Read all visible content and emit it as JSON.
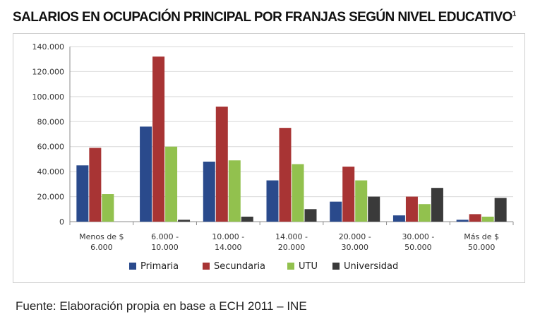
{
  "title": "SALARIOS EN OCUPACIÓN PRINCIPAL POR FRANJAS SEGÚN NIVEL EDUCATIVO",
  "title_footnote": "1",
  "source": "Fuente: Elaboración propia en base a ECH 2011 – INE",
  "chart_data": {
    "type": "bar",
    "title": "",
    "xlabel": "",
    "ylabel": "",
    "ylim": [
      0,
      140000
    ],
    "yticks": [
      0,
      20000,
      40000,
      60000,
      80000,
      100000,
      120000,
      140000
    ],
    "ytick_labels": [
      "0",
      "20.000",
      "40.000",
      "60.000",
      "80.000",
      "100.000",
      "120.000",
      "140.000"
    ],
    "categories": [
      [
        "Menos de $",
        "6.000"
      ],
      [
        "6.000 -",
        "10.000"
      ],
      [
        "10.000 -",
        "14.000"
      ],
      [
        "14.000 -",
        "20.000"
      ],
      [
        "20.000 -",
        "30.000"
      ],
      [
        "30.000 -",
        "50.000"
      ],
      [
        "Más de $",
        "50.000"
      ]
    ],
    "series": [
      {
        "name": "Primaria",
        "color": "#2a4a8c",
        "values": [
          45000,
          76000,
          48000,
          33000,
          16000,
          5000,
          1500
        ]
      },
      {
        "name": "Secundaria",
        "color": "#a83434",
        "values": [
          59000,
          132000,
          92000,
          75000,
          44000,
          20000,
          6000
        ]
      },
      {
        "name": "UTU",
        "color": "#92c14e",
        "values": [
          22000,
          60000,
          49000,
          46000,
          33000,
          14000,
          4000
        ]
      },
      {
        "name": "Universidad",
        "color": "#3a3a3a",
        "values": [
          0,
          1500,
          4000,
          10000,
          20000,
          27000,
          19000
        ]
      }
    ],
    "grid": true,
    "legend_position": "bottom"
  }
}
